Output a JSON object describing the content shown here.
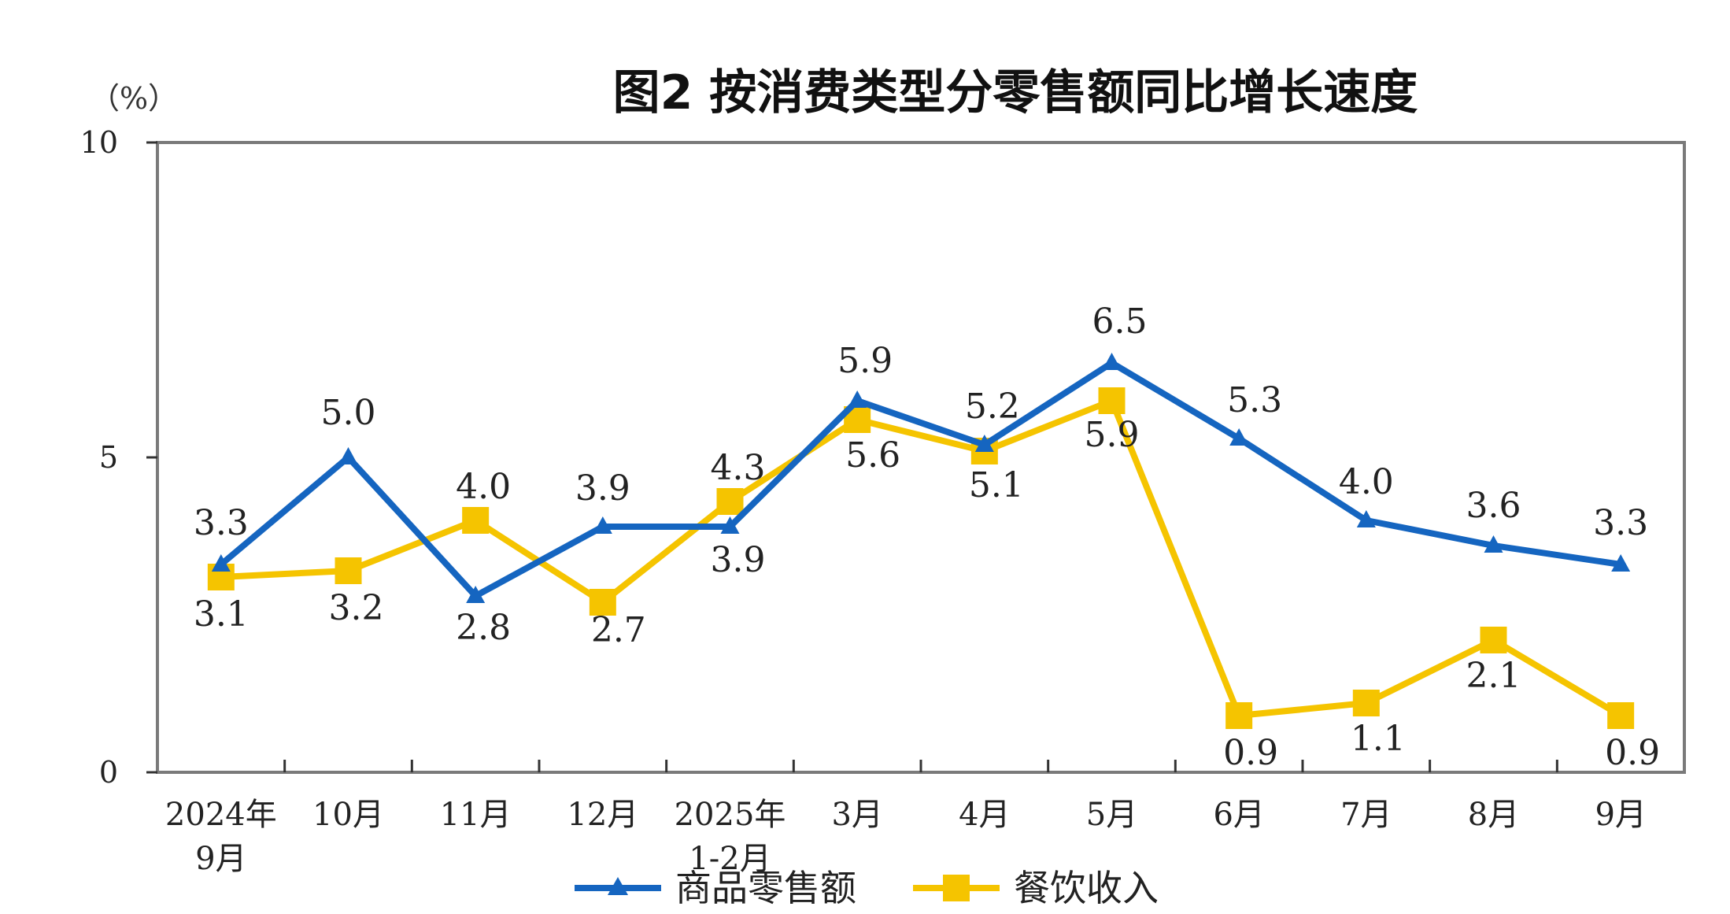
{
  "chart_data": {
    "type": "line",
    "title": "图2  按消费类型分零售额同比增长速度",
    "unit_label": "（%）",
    "ylim": [
      0,
      10
    ],
    "yticks": [
      "0",
      "5",
      "10"
    ],
    "categories": [
      [
        "2024年",
        "9月"
      ],
      [
        "10月"
      ],
      [
        "11月"
      ],
      [
        "12月"
      ],
      [
        "2025年",
        "1-2月"
      ],
      [
        "3月"
      ],
      [
        "4月"
      ],
      [
        "5月"
      ],
      [
        "6月"
      ],
      [
        "7月"
      ],
      [
        "8月"
      ],
      [
        "9月"
      ]
    ],
    "series": [
      {
        "name": "商品零售额",
        "color": "#1565C0",
        "marker": "triangle",
        "values": [
          3.3,
          5.0,
          2.8,
          3.9,
          3.9,
          5.9,
          5.2,
          6.5,
          5.3,
          4.0,
          3.6,
          3.3
        ],
        "labels": [
          "3.3",
          "5.0",
          "2.8",
          "3.9",
          "3.9",
          "5.9",
          "5.2",
          "6.5",
          "5.3",
          "4.0",
          "3.6",
          "3.3"
        ]
      },
      {
        "name": "餐饮收入",
        "color": "#F5C400",
        "marker": "square",
        "values": [
          3.1,
          3.2,
          4.0,
          2.7,
          4.3,
          5.6,
          5.1,
          5.9,
          0.9,
          1.1,
          2.1,
          0.9
        ],
        "labels": [
          "3.1",
          "3.2",
          "4.0",
          "2.7",
          "4.3",
          "5.6",
          "5.1",
          "5.9",
          "0.9",
          "1.1",
          "2.1",
          "0.9"
        ]
      }
    ],
    "grid": false,
    "legend_position": "bottom-center"
  }
}
